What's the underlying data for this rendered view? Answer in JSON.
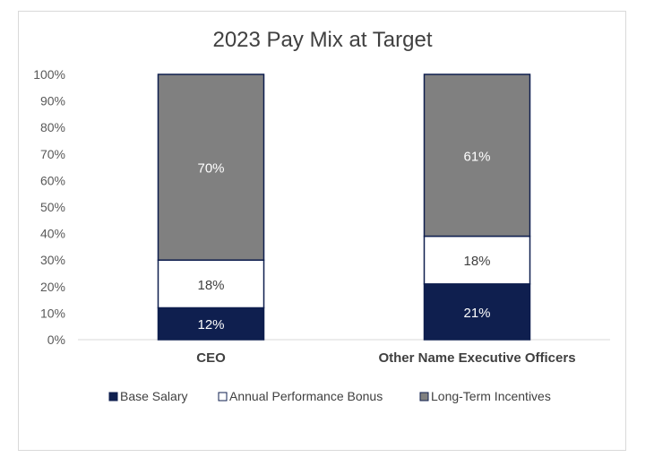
{
  "chart_data": {
    "type": "bar",
    "stacked": true,
    "title": "2023 Pay Mix at Target",
    "xlabel": "",
    "ylabel": "",
    "ylim": [
      0,
      100
    ],
    "y_ticks": [
      "0%",
      "10%",
      "20%",
      "30%",
      "40%",
      "50%",
      "60%",
      "70%",
      "80%",
      "90%",
      "100%"
    ],
    "categories": [
      "CEO",
      "Other Name Executive Officers"
    ],
    "series": [
      {
        "name": "Base Salary",
        "values": [
          12,
          21
        ],
        "labels": [
          "12%",
          "21%"
        ],
        "color": "#0f1f4f",
        "label_color": "#ffffff"
      },
      {
        "name": "Annual Performance Bonus",
        "values": [
          18,
          18
        ],
        "labels": [
          "18%",
          "18%"
        ],
        "color": "#ffffff",
        "label_color": "#404040"
      },
      {
        "name": "Long-Term Incentives",
        "values": [
          70,
          61
        ],
        "labels": [
          "70%",
          "61%"
        ],
        "color": "#808080",
        "label_color": "#ffffff"
      }
    ],
    "bar_outline_color": "#0f1f4f",
    "grid": false,
    "legend_position": "bottom"
  }
}
